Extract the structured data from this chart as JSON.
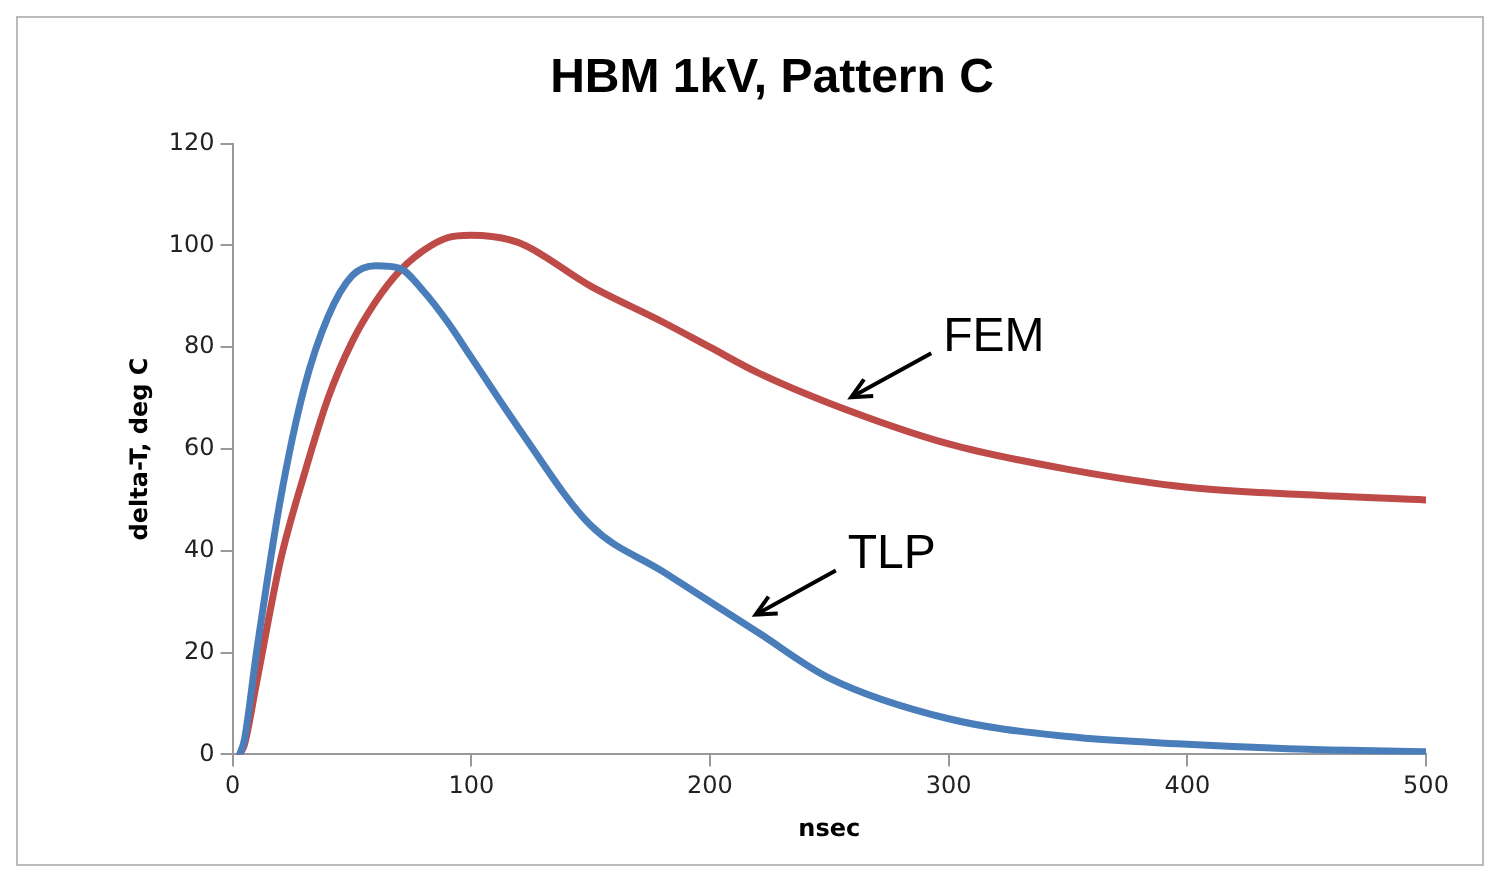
{
  "chart_data": {
    "type": "line",
    "title": "HBM 1kV, Pattern C",
    "xlabel": "nsec",
    "ylabel": "delta-T, deg C",
    "x": [
      3,
      5,
      10,
      20,
      30,
      40,
      50,
      60,
      70,
      80,
      90,
      100,
      120,
      150,
      180,
      200,
      220,
      250,
      300,
      350,
      400,
      450,
      500
    ],
    "series": [
      {
        "name": "TLP",
        "color": "#4a7ebb",
        "values": [
          0,
          3,
          20,
          50,
          72,
          86,
          94,
          96,
          95.5,
          91,
          85,
          78,
          64,
          45,
          36,
          30,
          24,
          15,
          7,
          3.5,
          2,
          1,
          0.5
        ]
      },
      {
        "name": "FEM",
        "color": "#be4b48",
        "values": [
          0,
          2,
          14,
          38,
          55,
          70,
          81,
          89,
          95,
          99,
          101.5,
          102,
          100.5,
          92,
          85,
          80,
          75,
          69,
          61,
          56,
          52.5,
          51,
          50
        ]
      }
    ],
    "xlim": [
      0,
      500
    ],
    "xticks": [
      0,
      100,
      200,
      300,
      400,
      500
    ],
    "ylim": [
      0,
      120
    ],
    "yticks": [
      0,
      20,
      40,
      60,
      80,
      100,
      120
    ],
    "grid": false,
    "legend": false,
    "marker": "none",
    "line_style": "solid"
  }
}
